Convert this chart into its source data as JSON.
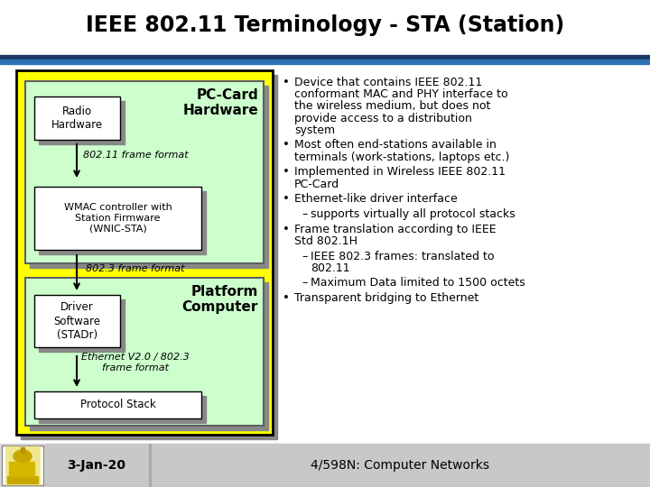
{
  "title": "IEEE 802.11 Terminology - STA (Station)",
  "title_fontsize": 17,
  "title_fontweight": "bold",
  "bg_color": "#ffffff",
  "header_line_color": "#1f3864",
  "header_line2_color": "#2e74b5",
  "diagram_outer_bg": "#ffff00",
  "diagram_inner_top_bg": "#ccffcc",
  "diagram_inner_bot_bg": "#ccffcc",
  "box_shadow": "#888888",
  "footer_bg": "#c0c0c0",
  "footer_date": "3-Jan-20",
  "footer_course": "4/598N: Computer Networks",
  "pc_card_label": "PC-Card\nHardware",
  "platform_label": "Platform\nComputer",
  "radio_hw_label": "Radio\nHardware",
  "wmac_label": "WMAC controller with\nStation Firmware\n(WNIC-STA)",
  "driver_label": "Driver\nSoftware\n(STADr)",
  "protocol_label": "Protocol Stack",
  "frame_format_1": "802.11 frame format",
  "frame_format_2": "802.3 frame format",
  "ethernet_label": "Ethernet V2.0 / 802.3\nframe format",
  "bullet_points": [
    {
      "level": 0,
      "text": "Device that contains IEEE 802.11\nconformant MAC and PHY interface to\nthe wireless medium, but does not\nprovide access to a distribution\nsystem"
    },
    {
      "level": 0,
      "text": "Most often end-stations available in\nterminals (work-stations, laptops etc.)"
    },
    {
      "level": 0,
      "text": "Implemented in Wireless IEEE 802.11\nPC-Card"
    },
    {
      "level": 0,
      "text": "Ethernet-like driver interface"
    },
    {
      "level": 1,
      "text": "supports virtually all protocol stacks"
    },
    {
      "level": 0,
      "text": "Frame translation according to IEEE\nStd 802.1H"
    },
    {
      "level": 1,
      "text": "IEEE 802.3 frames: translated to\n802.11"
    },
    {
      "level": 1,
      "text": "Maximum Data limited to 1500 octets"
    },
    {
      "level": 0,
      "text": "Transparent bridging to Ethernet"
    }
  ]
}
